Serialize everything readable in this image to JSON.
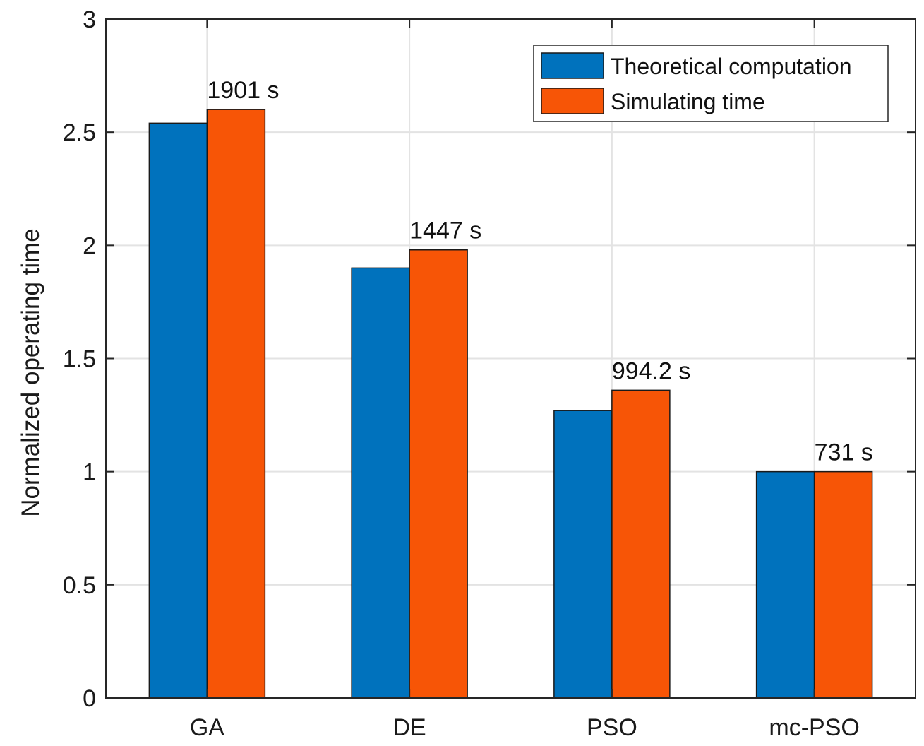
{
  "chart_data": {
    "type": "bar",
    "title": "",
    "xlabel": "",
    "ylabel": "Normalized operating time",
    "ylim": [
      0,
      3
    ],
    "yticks": [
      0,
      0.5,
      1,
      1.5,
      2,
      2.5,
      3
    ],
    "ytick_labels": [
      "0",
      "0.5",
      "1",
      "1.5",
      "2",
      "2.5",
      "3"
    ],
    "categories": [
      "GA",
      "DE",
      "PSO",
      "mc-PSO"
    ],
    "grid": true,
    "legend_position": "top-right",
    "series": [
      {
        "name": "Theoretical computation",
        "color": "#0072BD",
        "values": [
          2.54,
          1.9,
          1.27,
          1.0
        ]
      },
      {
        "name": "Simulating time",
        "color": "#F75506",
        "values": [
          2.6,
          1.98,
          1.36,
          1.0
        ]
      }
    ],
    "annotations": [
      "1901 s",
      "1447 s",
      "994.2 s",
      "731 s"
    ]
  }
}
